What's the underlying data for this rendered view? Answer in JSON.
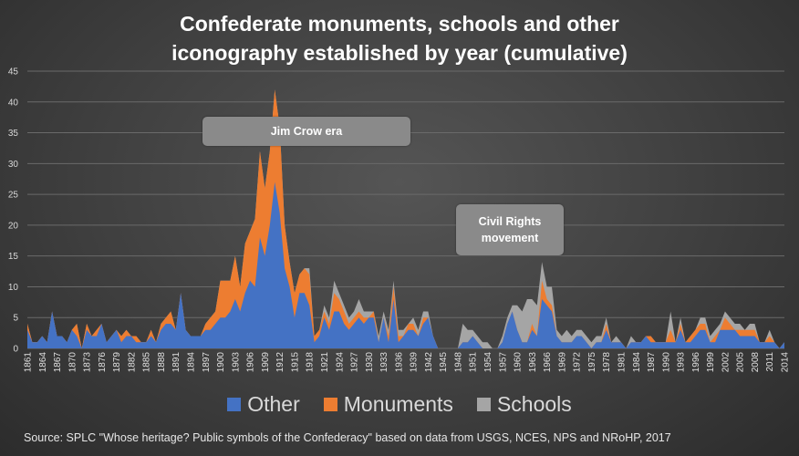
{
  "chart_data": {
    "type": "area",
    "stacked": true,
    "title": "Confederate monuments, schools and other\niconography established by year (cumulative)",
    "xlabel": "",
    "ylabel": "",
    "ylim": [
      0,
      45
    ],
    "yticks": [
      0,
      5,
      10,
      15,
      20,
      25,
      30,
      35,
      40,
      45
    ],
    "grid": true,
    "legend_position": "bottom",
    "x_start": 1861,
    "x_end": 2014,
    "x_tick_step": 3,
    "x_tick_labels": [
      "1861",
      "1864",
      "1867",
      "1870",
      "1873",
      "1876",
      "1879",
      "1882",
      "1885",
      "1888",
      "1891",
      "1894",
      "1897",
      "1900",
      "1903",
      "1906",
      "1909",
      "1912",
      "1915",
      "1918",
      "1921",
      "1924",
      "1927",
      "1930",
      "1933",
      "1936",
      "1939",
      "1942",
      "1945",
      "1948",
      "1951",
      "1954",
      "1957",
      "1960",
      "1963",
      "1966",
      "1969",
      "1972",
      "1975",
      "1978",
      "1981",
      "1984",
      "1987",
      "1990",
      "1993",
      "1996",
      "1999",
      "2002",
      "2005",
      "2008",
      "2011",
      "2014"
    ],
    "series": [
      {
        "name": "Other",
        "color": "#4472C4",
        "values": [
          3,
          1,
          1,
          2,
          1,
          6,
          2,
          2,
          1,
          3,
          2,
          0,
          3,
          2,
          2,
          4,
          1,
          2,
          3,
          1,
          2,
          2,
          1,
          1,
          1,
          2,
          1,
          3,
          4,
          4,
          3,
          9,
          3,
          2,
          2,
          2,
          3,
          3,
          4,
          5,
          5,
          6,
          8,
          6,
          9,
          11,
          10,
          18,
          15,
          20,
          27,
          22,
          13,
          10,
          5,
          9,
          9,
          7,
          1,
          2,
          5,
          3,
          6,
          6,
          4,
          3,
          4,
          5,
          4,
          5,
          5,
          1,
          5,
          1,
          8,
          1,
          2,
          3,
          3,
          2,
          4,
          5,
          2,
          0,
          0,
          0,
          0,
          0,
          1,
          1,
          2,
          1,
          0,
          0,
          0,
          0,
          1,
          4,
          6,
          3,
          1,
          1,
          3,
          2,
          8,
          7,
          6,
          2,
          1,
          1,
          1,
          2,
          2,
          1,
          0,
          1,
          1,
          3,
          1,
          1,
          1,
          0,
          1,
          1,
          1,
          2,
          1,
          1,
          1,
          1,
          1,
          1,
          3,
          1,
          1,
          2,
          3,
          3,
          1,
          1,
          3,
          3,
          3,
          3,
          2,
          2,
          2,
          2,
          1,
          1,
          1,
          1,
          0,
          1
        ]
      },
      {
        "name": "Monuments",
        "color": "#ED7D31",
        "values": [
          1,
          0,
          0,
          0,
          0,
          0,
          0,
          0,
          0,
          0,
          2,
          0,
          1,
          0,
          1,
          0,
          0,
          0,
          0,
          1,
          1,
          0,
          1,
          0,
          0,
          1,
          0,
          1,
          1,
          2,
          0,
          0,
          0,
          0,
          0,
          0,
          1,
          2,
          2,
          6,
          6,
          5,
          7,
          4,
          8,
          8,
          11,
          14,
          11,
          12,
          15,
          14,
          7,
          4,
          4,
          3,
          4,
          5,
          1,
          1,
          1,
          1,
          3,
          2,
          2,
          1,
          1,
          1,
          1,
          0,
          1,
          0,
          0,
          1,
          2,
          1,
          0,
          1,
          1,
          0,
          1,
          0,
          0,
          0,
          0,
          0,
          0,
          0,
          0,
          0,
          0,
          0,
          0,
          0,
          0,
          0,
          0,
          0,
          0,
          0,
          0,
          0,
          1,
          0,
          3,
          1,
          1,
          0,
          0,
          0,
          0,
          0,
          0,
          0,
          0,
          0,
          0,
          1,
          0,
          0,
          0,
          0,
          0,
          0,
          0,
          0,
          1,
          0,
          0,
          0,
          2,
          0,
          1,
          0,
          1,
          1,
          1,
          1,
          0,
          1,
          0,
          2,
          1,
          0,
          1,
          1,
          1,
          1,
          0,
          0,
          1,
          0,
          0,
          0
        ]
      },
      {
        "name": "Schools",
        "color": "#A5A5A5",
        "values": [
          0,
          0,
          0,
          0,
          0,
          0,
          0,
          0,
          0,
          0,
          0,
          0,
          0,
          0,
          0,
          0,
          0,
          0,
          0,
          0,
          0,
          0,
          0,
          0,
          0,
          0,
          0,
          0,
          0,
          0,
          0,
          0,
          0,
          0,
          0,
          0,
          0,
          0,
          0,
          0,
          0,
          0,
          0,
          0,
          0,
          0,
          0,
          0,
          0,
          0,
          0,
          0,
          0,
          0,
          0,
          0,
          0,
          1,
          0,
          0,
          1,
          1,
          2,
          1,
          1,
          1,
          1,
          2,
          1,
          1,
          0,
          1,
          1,
          1,
          1,
          1,
          1,
          0,
          1,
          1,
          1,
          1,
          0,
          0,
          0,
          0,
          0,
          0,
          3,
          2,
          1,
          1,
          1,
          1,
          0,
          0,
          1,
          1,
          1,
          4,
          5,
          7,
          4,
          5,
          3,
          2,
          3,
          1,
          1,
          2,
          1,
          1,
          1,
          1,
          1,
          1,
          1,
          1,
          0,
          1,
          0,
          0,
          1,
          0,
          0,
          0,
          0,
          0,
          0,
          0,
          3,
          0,
          1,
          0,
          0,
          0,
          1,
          1,
          1,
          1,
          1,
          1,
          1,
          1,
          1,
          0,
          1,
          1,
          0,
          0,
          1,
          0,
          0,
          0
        ]
      }
    ],
    "annotations": [
      {
        "name": "jim-crow",
        "text": "Jim Crow era"
      },
      {
        "name": "civil-rights",
        "text": "Civil Rights\nmovement"
      }
    ]
  },
  "source": "Source: SPLC \"Whose heritage? Public symbols of the Confederacy\" based on data from USGS, NCES, NPS and NRoHP, 2017"
}
